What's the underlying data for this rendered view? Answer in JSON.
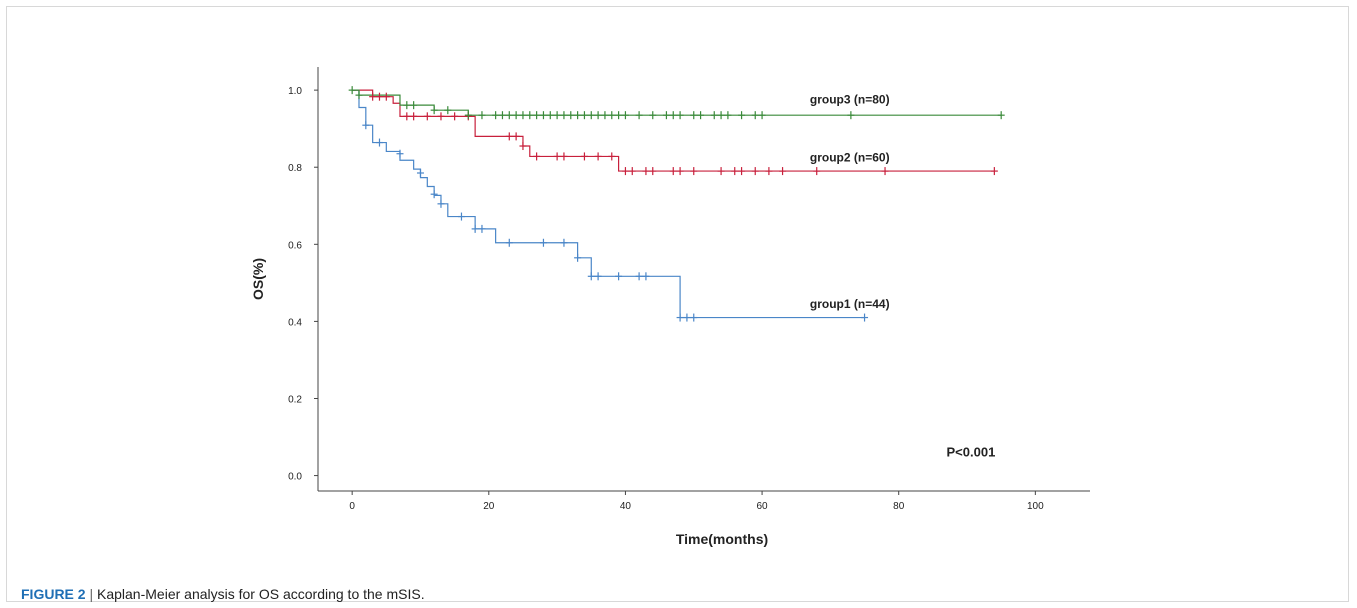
{
  "figure": {
    "label": "FIGURE 2",
    "separator": "|",
    "caption_text": "Kaplan-Meier analysis for OS according to the mSIS."
  },
  "chart_data": {
    "type": "line",
    "subtype": "kaplan-meier-step",
    "title": "",
    "xlabel": "Time(months)",
    "ylabel": "OS(%)",
    "xlim": [
      -5,
      108
    ],
    "ylim": [
      -0.04,
      1.06
    ],
    "x_ticks": [
      0,
      20,
      40,
      60,
      80,
      100
    ],
    "x_tick_labels": [
      "0",
      "20",
      "40",
      "60",
      "80",
      "100"
    ],
    "y_ticks": [
      0.0,
      0.2,
      0.4,
      0.6,
      0.8,
      1.0
    ],
    "y_tick_labels": [
      "0.0",
      "0.2",
      "0.4",
      "0.6",
      "0.8",
      "1.0"
    ],
    "grid": false,
    "annotation": "P<0.001",
    "series": [
      {
        "name": "group1 (n=44)",
        "color": "#4a86c8",
        "steps": [
          [
            0,
            1.0
          ],
          [
            1,
            0.955
          ],
          [
            2,
            0.909
          ],
          [
            3,
            0.864
          ],
          [
            5,
            0.841
          ],
          [
            7,
            0.818
          ],
          [
            9,
            0.795
          ],
          [
            10,
            0.773
          ],
          [
            11,
            0.75
          ],
          [
            12,
            0.727
          ],
          [
            13,
            0.705
          ],
          [
            14,
            0.672
          ],
          [
            18,
            0.64
          ],
          [
            21,
            0.604
          ],
          [
            33,
            0.565
          ],
          [
            35,
            0.517
          ],
          [
            48,
            0.41
          ],
          [
            75,
            0.41
          ]
        ],
        "censored": [
          [
            2,
            0.909
          ],
          [
            4,
            0.864
          ],
          [
            7,
            0.835
          ],
          [
            10,
            0.785
          ],
          [
            12,
            0.73
          ],
          [
            13,
            0.705
          ],
          [
            16,
            0.672
          ],
          [
            18,
            0.64
          ],
          [
            19,
            0.64
          ],
          [
            23,
            0.604
          ],
          [
            28,
            0.604
          ],
          [
            31,
            0.604
          ],
          [
            33,
            0.565
          ],
          [
            35,
            0.517
          ],
          [
            36,
            0.517
          ],
          [
            39,
            0.517
          ],
          [
            42,
            0.517
          ],
          [
            43,
            0.517
          ],
          [
            48,
            0.41
          ],
          [
            49,
            0.41
          ],
          [
            50,
            0.41
          ],
          [
            75,
            0.41
          ]
        ]
      },
      {
        "name": "group2 (n=60)",
        "color": "#c8203c",
        "steps": [
          [
            0,
            1.0
          ],
          [
            3,
            0.983
          ],
          [
            6,
            0.966
          ],
          [
            7,
            0.932
          ],
          [
            18,
            0.88
          ],
          [
            25,
            0.855
          ],
          [
            26,
            0.828
          ],
          [
            39,
            0.79
          ],
          [
            94,
            0.79
          ]
        ],
        "censored": [
          [
            3,
            0.983
          ],
          [
            4,
            0.983
          ],
          [
            5,
            0.983
          ],
          [
            8,
            0.932
          ],
          [
            9,
            0.932
          ],
          [
            11,
            0.932
          ],
          [
            13,
            0.932
          ],
          [
            15,
            0.932
          ],
          [
            17,
            0.932
          ],
          [
            23,
            0.88
          ],
          [
            24,
            0.88
          ],
          [
            25,
            0.855
          ],
          [
            27,
            0.828
          ],
          [
            30,
            0.828
          ],
          [
            31,
            0.828
          ],
          [
            34,
            0.828
          ],
          [
            36,
            0.828
          ],
          [
            38,
            0.828
          ],
          [
            40,
            0.79
          ],
          [
            41,
            0.79
          ],
          [
            43,
            0.79
          ],
          [
            44,
            0.79
          ],
          [
            47,
            0.79
          ],
          [
            48,
            0.79
          ],
          [
            50,
            0.79
          ],
          [
            54,
            0.79
          ],
          [
            56,
            0.79
          ],
          [
            57,
            0.79
          ],
          [
            59,
            0.79
          ],
          [
            61,
            0.79
          ],
          [
            63,
            0.79
          ],
          [
            68,
            0.79
          ],
          [
            78,
            0.79
          ],
          [
            94,
            0.79
          ]
        ]
      },
      {
        "name": "group3 (n=80)",
        "color": "#3a8a3a",
        "steps": [
          [
            0,
            1.0
          ],
          [
            1,
            0.987
          ],
          [
            7,
            0.961
          ],
          [
            12,
            0.948
          ],
          [
            17,
            0.935
          ],
          [
            95,
            0.935
          ]
        ],
        "censored": [
          [
            0,
            1.0
          ],
          [
            1,
            0.987
          ],
          [
            8,
            0.961
          ],
          [
            9,
            0.961
          ],
          [
            12,
            0.948
          ],
          [
            14,
            0.948
          ],
          [
            17,
            0.935
          ],
          [
            19,
            0.935
          ],
          [
            21,
            0.935
          ],
          [
            22,
            0.935
          ],
          [
            23,
            0.935
          ],
          [
            24,
            0.935
          ],
          [
            25,
            0.935
          ],
          [
            26,
            0.935
          ],
          [
            27,
            0.935
          ],
          [
            28,
            0.935
          ],
          [
            29,
            0.935
          ],
          [
            30,
            0.935
          ],
          [
            31,
            0.935
          ],
          [
            32,
            0.935
          ],
          [
            33,
            0.935
          ],
          [
            34,
            0.935
          ],
          [
            35,
            0.935
          ],
          [
            36,
            0.935
          ],
          [
            37,
            0.935
          ],
          [
            38,
            0.935
          ],
          [
            39,
            0.935
          ],
          [
            40,
            0.935
          ],
          [
            42,
            0.935
          ],
          [
            44,
            0.935
          ],
          [
            46,
            0.935
          ],
          [
            47,
            0.935
          ],
          [
            48,
            0.935
          ],
          [
            50,
            0.935
          ],
          [
            51,
            0.935
          ],
          [
            53,
            0.935
          ],
          [
            54,
            0.935
          ],
          [
            55,
            0.935
          ],
          [
            57,
            0.935
          ],
          [
            59,
            0.935
          ],
          [
            60,
            0.935
          ],
          [
            73,
            0.935
          ],
          [
            95,
            0.935
          ]
        ]
      }
    ],
    "series_labels": [
      {
        "text": "group3 (n=80)",
        "x": 67,
        "y": 0.965
      },
      {
        "text": "group2 (n=60)",
        "x": 67,
        "y": 0.815
      },
      {
        "text": "group1 (n=44)",
        "x": 67,
        "y": 0.435
      }
    ],
    "annotation_pos": {
      "x": 87,
      "y": 0.05
    }
  }
}
